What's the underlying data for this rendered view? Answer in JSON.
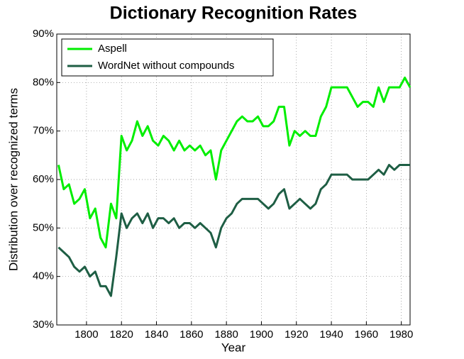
{
  "chart_data": {
    "type": "line",
    "title": "Dictionary Recognition Rates",
    "xlabel": "Year",
    "ylabel": "Distribution over recognized terms",
    "x": [
      1784,
      1787,
      1790,
      1793,
      1796,
      1799,
      1802,
      1805,
      1808,
      1811,
      1814,
      1817,
      1820,
      1823,
      1826,
      1829,
      1832,
      1835,
      1838,
      1841,
      1844,
      1847,
      1850,
      1853,
      1856,
      1859,
      1862,
      1865,
      1868,
      1871,
      1874,
      1877,
      1880,
      1883,
      1886,
      1889,
      1892,
      1895,
      1898,
      1901,
      1904,
      1907,
      1910,
      1913,
      1916,
      1919,
      1922,
      1925,
      1928,
      1931,
      1934,
      1937,
      1940,
      1943,
      1946,
      1949,
      1952,
      1955,
      1958,
      1961,
      1964,
      1967,
      1970,
      1973,
      1976,
      1979,
      1982,
      1985
    ],
    "series": [
      {
        "name": "Aspell",
        "color": "#00ee00",
        "values": [
          63,
          58,
          59,
          55,
          56,
          58,
          52,
          54,
          48,
          46,
          55,
          52,
          69,
          66,
          68,
          72,
          69,
          71,
          68,
          67,
          69,
          68,
          66,
          68,
          66,
          67,
          66,
          67,
          65,
          66,
          60,
          66,
          68,
          70,
          72,
          73,
          72,
          72,
          73,
          71,
          71,
          72,
          75,
          75,
          67,
          70,
          69,
          70,
          69,
          69,
          73,
          75,
          79,
          79,
          79,
          79,
          77,
          75,
          76,
          76,
          75,
          79,
          76,
          79,
          79,
          79,
          81,
          79
        ]
      },
      {
        "name": "WordNet without compounds",
        "color": "#1e5e44",
        "values": [
          46,
          45,
          44,
          42,
          41,
          42,
          40,
          41,
          38,
          38,
          36,
          44,
          53,
          50,
          52,
          53,
          51,
          53,
          50,
          52,
          52,
          51,
          52,
          50,
          51,
          51,
          50,
          51,
          50,
          49,
          46,
          50,
          52,
          53,
          55,
          56,
          56,
          56,
          56,
          55,
          54,
          55,
          57,
          58,
          54,
          55,
          56,
          55,
          54,
          55,
          58,
          59,
          61,
          61,
          61,
          61,
          60,
          60,
          60,
          60,
          61,
          62,
          61,
          63,
          62,
          63,
          63,
          63
        ]
      }
    ],
    "xlim": [
      1783,
      1985
    ],
    "xticks": [
      1800,
      1820,
      1840,
      1860,
      1880,
      1900,
      1920,
      1940,
      1960,
      1980
    ],
    "ylim": [
      30,
      90
    ],
    "yticks": [
      {
        "value": 30,
        "label": "30%"
      },
      {
        "value": 40,
        "label": "40%"
      },
      {
        "value": 50,
        "label": "50%"
      },
      {
        "value": 60,
        "label": "60%"
      },
      {
        "value": 70,
        "label": "70%"
      },
      {
        "value": 80,
        "label": "80%"
      },
      {
        "value": 90,
        "label": "90%"
      }
    ],
    "grid": true,
    "legend": "upper-left"
  }
}
